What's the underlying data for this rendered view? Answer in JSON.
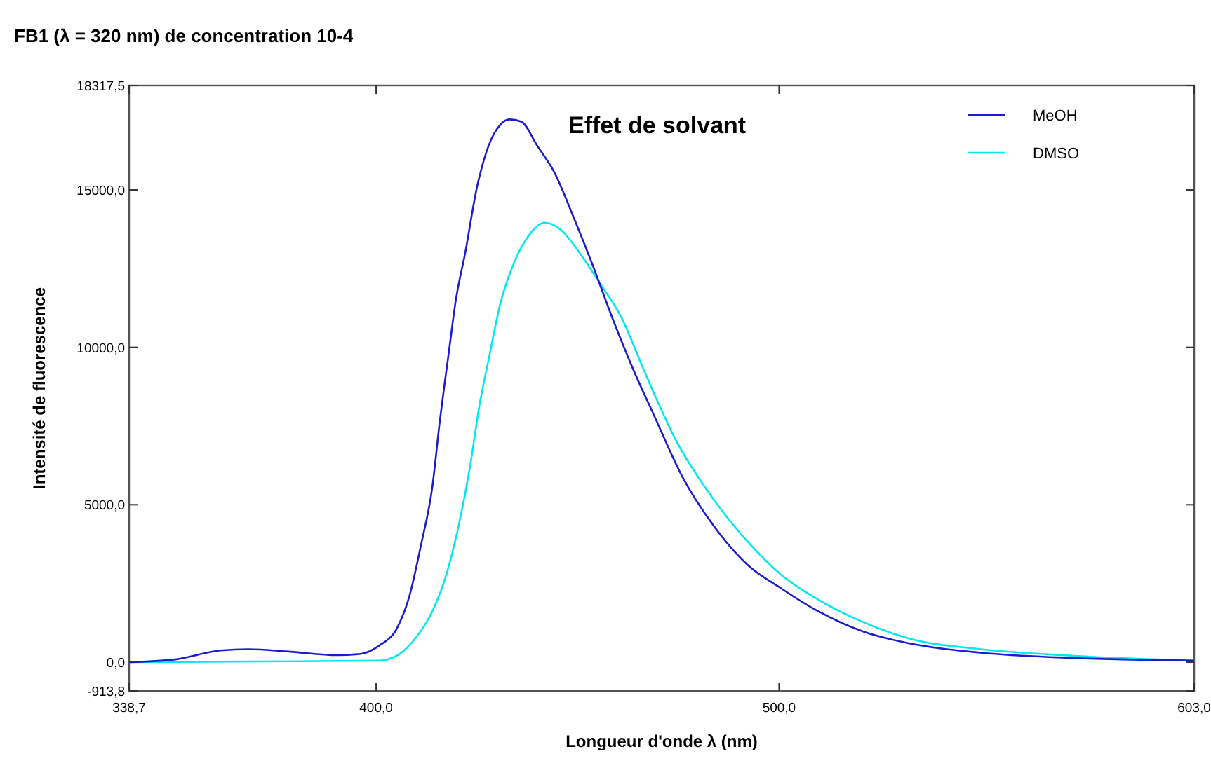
{
  "chart_data": {
    "type": "line",
    "title": "FB1 (λ = 320 nm) de concentration 10-4",
    "xlabel": "Longueur  d'onde λ (nm)",
    "ylabel": "Intensité  de fluorescence",
    "annotations": [
      "Effet de solvant"
    ],
    "xlim": [
      338.7,
      603.0
    ],
    "xticks": [
      {
        "value": 338.7,
        "label": "338,7"
      },
      {
        "value": 400,
        "label": "400,0"
      },
      {
        "value": 500,
        "label": "500,0"
      },
      {
        "value": 603,
        "label": "603,0"
      }
    ],
    "ylim": [
      -913.8,
      18317.5
    ],
    "yticks": [
      {
        "value": -913.8,
        "label": "-913,8"
      },
      {
        "value": 0,
        "label": "0,0"
      },
      {
        "value": 5000,
        "label": "5000,0"
      },
      {
        "value": 10000,
        "label": "10000,0"
      },
      {
        "value": 15000,
        "label": "15000,0"
      },
      {
        "value": 18317.5,
        "label": "18317,5"
      }
    ],
    "grid": false,
    "legend": "top right",
    "marker": "none",
    "line_style": "solid",
    "series": [
      {
        "name": "MeOH",
        "color": "#1c1ccf",
        "x": [
          338.7,
          349.8,
          361.4,
          368.3,
          378.7,
          390.3,
          396.1,
          400.7,
          405.3,
          408.2,
          411.1,
          414,
          415.7,
          418.1,
          419.8,
          422.1,
          425,
          427.9,
          430.8,
          433.1,
          436,
          440,
          444.1,
          449.3,
          453.9,
          458.6,
          463.8,
          469,
          475.9,
          484,
          492.1,
          500.2,
          509.5,
          521.1,
          532.6,
          550,
          573.2,
          603
        ],
        "values": [
          0,
          80,
          370,
          410,
          330,
          220,
          260,
          520,
          1110,
          2070,
          3700,
          5620,
          7540,
          9900,
          11520,
          13000,
          15070,
          16400,
          17070,
          17240,
          17170,
          16400,
          15590,
          14040,
          12560,
          10940,
          9300,
          7830,
          5910,
          4290,
          3100,
          2370,
          1630,
          960,
          590,
          300,
          130,
          50
        ]
      },
      {
        "name": "DMSO",
        "color": "#00e8f0",
        "x": [
          338.7,
          370,
          400.7,
          405.3,
          410,
          414,
          417.5,
          420.4,
          423.3,
          425.6,
          427.9,
          430.8,
          434.3,
          437.7,
          441.8,
          445.8,
          450.5,
          455.1,
          460.9,
          466.7,
          474.8,
          482.9,
          492.1,
          500.2,
          509.5,
          521.1,
          532.6,
          550,
          573.2,
          603
        ],
        "values": [
          0,
          20,
          50,
          220,
          800,
          1630,
          2810,
          4290,
          6210,
          8130,
          9600,
          11380,
          12710,
          13520,
          13960,
          13740,
          13000,
          12120,
          10940,
          9200,
          6950,
          5320,
          3840,
          2810,
          2000,
          1260,
          740,
          410,
          200,
          50
        ]
      }
    ]
  }
}
